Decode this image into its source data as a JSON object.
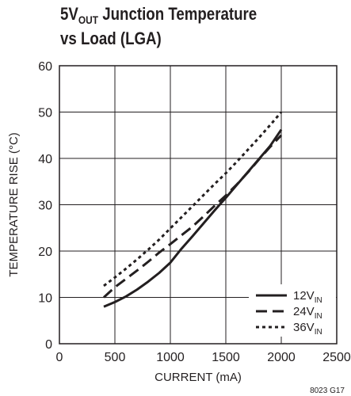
{
  "chart_data": {
    "type": "line",
    "title": {
      "line1_prefix": "5V",
      "line1_sub": "OUT",
      "line1_suffix": " Junction Temperature",
      "line2": "vs Load (LGA)"
    },
    "xlabel": "CURRENT (mA)",
    "ylabel": "TEMPERATURE RISE (°C)",
    "xlim": [
      0,
      2500
    ],
    "ylim": [
      0,
      60
    ],
    "xticks": [
      0,
      500,
      1000,
      1500,
      2000,
      2500
    ],
    "yticks": [
      0,
      10,
      20,
      30,
      40,
      50,
      60
    ],
    "grid": true,
    "legend_position": "bottom-right",
    "series": [
      {
        "name": "12V",
        "name_sub": "IN",
        "dash": "solid",
        "x": [
          400,
          500,
          600,
          700,
          800,
          900,
          1000,
          1100,
          1200,
          1300,
          1400,
          1500,
          1600,
          1700,
          1800,
          1900,
          2000
        ],
        "y": [
          8,
          9,
          10.2,
          11.7,
          13.4,
          15.3,
          17.5,
          20.5,
          23.2,
          26,
          28.8,
          31.5,
          34.3,
          37.1,
          39.9,
          42.7,
          46.2
        ]
      },
      {
        "name": "24V",
        "name_sub": "IN",
        "dash": "dashed",
        "x": [
          400,
          500,
          600,
          700,
          800,
          900,
          1000,
          1100,
          1200,
          1300,
          1400,
          1500,
          1600,
          1700,
          1800,
          1900,
          2000
        ],
        "y": [
          10,
          12.2,
          14,
          15.8,
          17.7,
          19.7,
          21.5,
          23.4,
          25.3,
          27.5,
          29.8,
          32,
          34.4,
          37,
          39.8,
          42.5,
          45
        ]
      },
      {
        "name": "36V",
        "name_sub": "IN",
        "dash": "dotted",
        "x": [
          400,
          500,
          600,
          700,
          800,
          900,
          1000,
          1100,
          1200,
          1300,
          1400,
          1500,
          1600,
          1700,
          1800,
          1900,
          2000
        ],
        "y": [
          12.5,
          14.3,
          16.2,
          18.2,
          20.3,
          22.5,
          24.9,
          27.3,
          29.7,
          32.1,
          34.5,
          36.8,
          39.3,
          41.9,
          44.5,
          47.2,
          50
        ]
      }
    ]
  },
  "figure_code": "8023 G17",
  "colors": {
    "ink": "#231f20",
    "background": "#ffffff"
  }
}
